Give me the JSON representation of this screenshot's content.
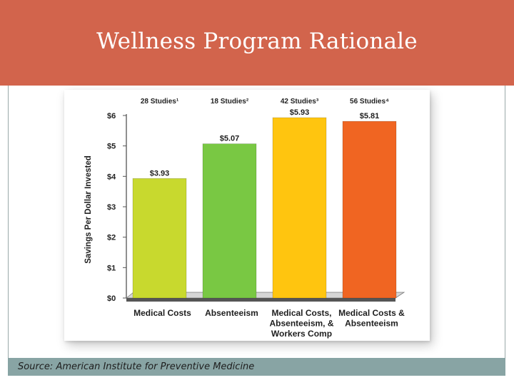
{
  "slide": {
    "title": "Wellness Program Rationale",
    "source": "Source:  American Institute for Preventive Medicine"
  },
  "colors": {
    "header": "#d2644c",
    "footer": "#88a4a4",
    "series": [
      "#c8d92e",
      "#79c843",
      "#ffc50f",
      "#f06522"
    ]
  },
  "chart_data": {
    "type": "bar",
    "ylabel": "Savings Per Dollar Invested",
    "xlabel": "",
    "ylim": [
      0,
      6
    ],
    "yticks": [
      0,
      1,
      2,
      3,
      4,
      5,
      6
    ],
    "ytick_labels": [
      "$0",
      "$1",
      "$2",
      "$3",
      "$4",
      "$5",
      "$6"
    ],
    "grid": false,
    "categories": [
      [
        "Medical Costs"
      ],
      [
        "Absenteeism"
      ],
      [
        "Medical Costs,",
        "Absenteeism, &",
        "Workers Comp"
      ],
      [
        "Medical Costs &",
        "Absenteeism"
      ]
    ],
    "values": [
      3.93,
      5.07,
      5.93,
      5.81
    ],
    "value_labels": [
      "$3.93",
      "$5.07",
      "$5.93",
      "$5.81"
    ],
    "annotations": [
      "28 Studies¹",
      "18 Studies²",
      "42 Studies³",
      "56 Studies⁴"
    ]
  }
}
